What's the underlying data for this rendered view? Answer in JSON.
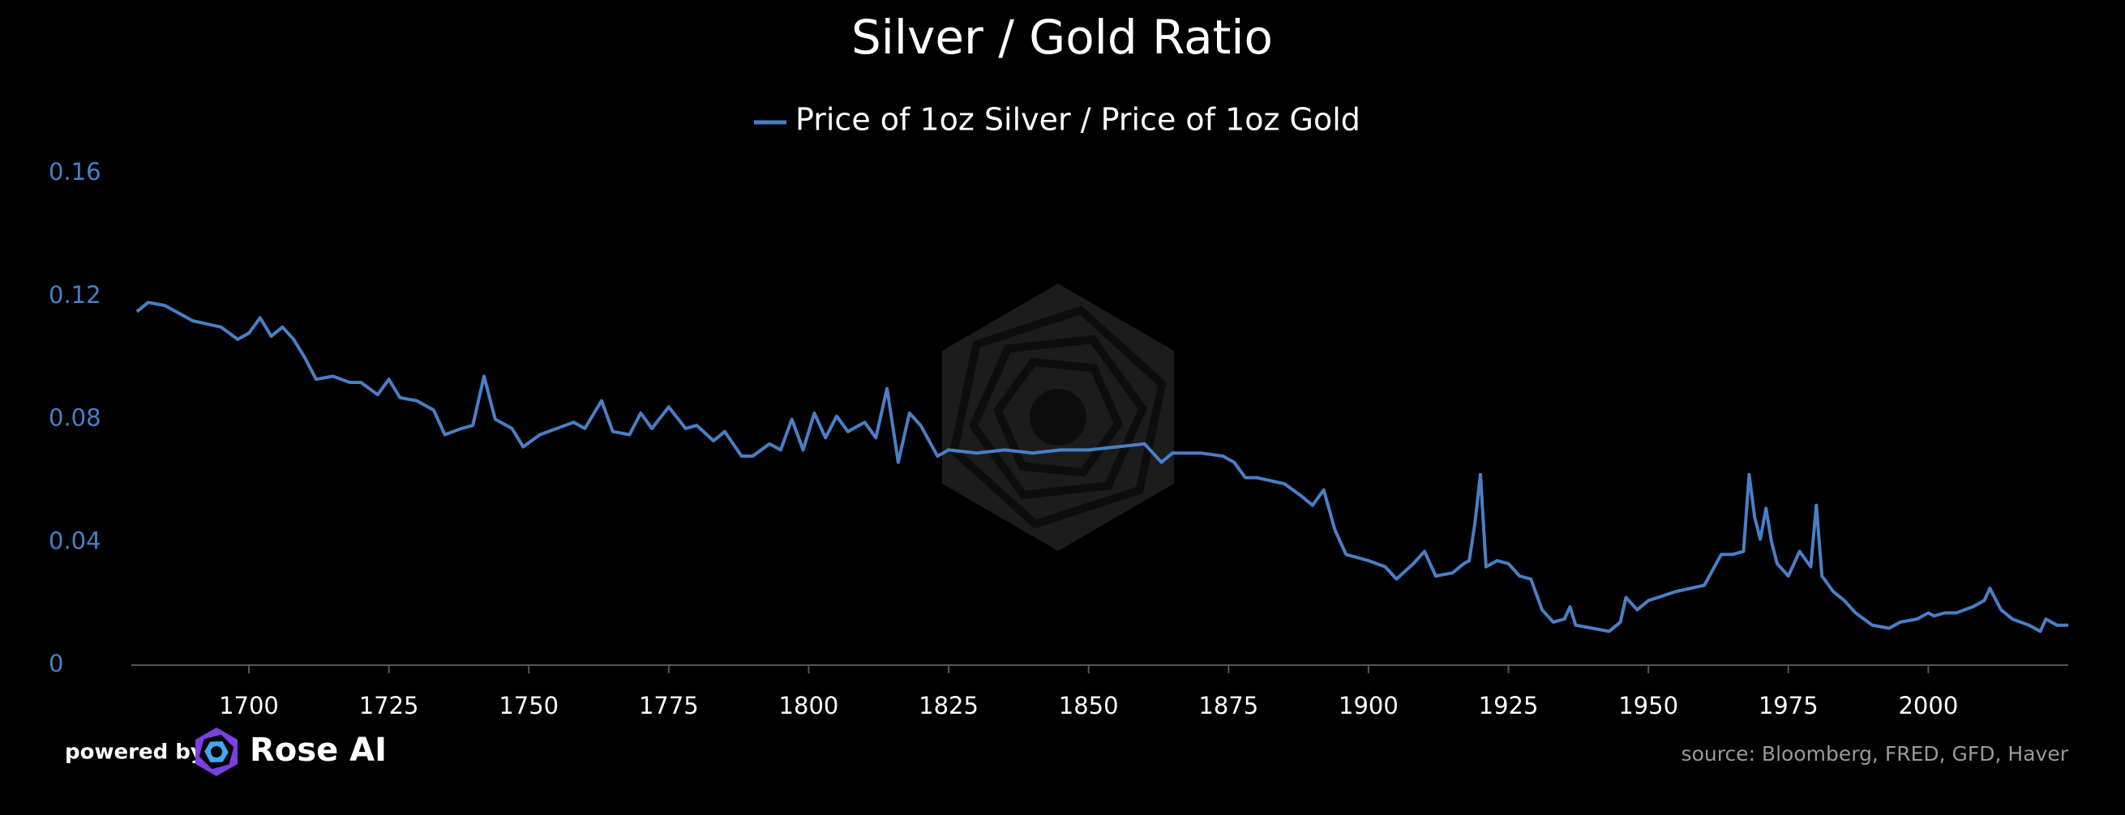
{
  "chart_data": {
    "type": "line",
    "title": "Silver / Gold Ratio",
    "x": [
      1680,
      1682,
      1685,
      1688,
      1690,
      1695,
      1698,
      1700,
      1702,
      1704,
      1706,
      1708,
      1710,
      1712,
      1715,
      1718,
      1720,
      1723,
      1725,
      1727,
      1730,
      1733,
      1735,
      1738,
      1740,
      1742,
      1744,
      1747,
      1749,
      1752,
      1755,
      1758,
      1760,
      1763,
      1765,
      1768,
      1770,
      1772,
      1775,
      1778,
      1780,
      1783,
      1785,
      1788,
      1790,
      1793,
      1795,
      1797,
      1799,
      1801,
      1803,
      1805,
      1807,
      1810,
      1812,
      1814,
      1816,
      1818,
      1820,
      1823,
      1825,
      1830,
      1835,
      1840,
      1845,
      1850,
      1855,
      1860,
      1863,
      1865,
      1870,
      1874,
      1876,
      1878,
      1880,
      1885,
      1888,
      1890,
      1892,
      1894,
      1896,
      1900,
      1903,
      1905,
      1908,
      1910,
      1912,
      1915,
      1917,
      1918,
      1919,
      1920,
      1921,
      1923,
      1925,
      1927,
      1929,
      1931,
      1933,
      1935,
      1936,
      1937,
      1940,
      1943,
      1945,
      1946,
      1948,
      1950,
      1955,
      1960,
      1963,
      1965,
      1967,
      1968,
      1969,
      1970,
      1971,
      1972,
      1973,
      1975,
      1977,
      1979,
      1980,
      1981,
      1983,
      1985,
      1987,
      1990,
      1993,
      1995,
      1998,
      2000,
      2001,
      2003,
      2005,
      2008,
      2010,
      2011,
      2013,
      2015,
      2018,
      2020,
      2021,
      2023,
      2025
    ],
    "series": [
      {
        "name": "Price of 1oz Silver / Price of 1oz Gold",
        "color": "#4a7fc6",
        "values": [
          0.115,
          0.118,
          0.117,
          0.114,
          0.112,
          0.11,
          0.106,
          0.108,
          0.113,
          0.107,
          0.11,
          0.106,
          0.1,
          0.093,
          0.094,
          0.092,
          0.092,
          0.088,
          0.093,
          0.087,
          0.086,
          0.083,
          0.075,
          0.077,
          0.078,
          0.094,
          0.08,
          0.077,
          0.071,
          0.075,
          0.077,
          0.079,
          0.077,
          0.086,
          0.076,
          0.075,
          0.082,
          0.077,
          0.084,
          0.077,
          0.078,
          0.073,
          0.076,
          0.068,
          0.068,
          0.072,
          0.07,
          0.08,
          0.07,
          0.082,
          0.074,
          0.081,
          0.076,
          0.079,
          0.074,
          0.09,
          0.066,
          0.082,
          0.078,
          0.068,
          0.07,
          0.069,
          0.07,
          0.069,
          0.07,
          0.07,
          0.071,
          0.072,
          0.066,
          0.069,
          0.069,
          0.068,
          0.066,
          0.061,
          0.061,
          0.059,
          0.055,
          0.052,
          0.057,
          0.044,
          0.036,
          0.034,
          0.032,
          0.028,
          0.033,
          0.037,
          0.029,
          0.03,
          0.033,
          0.034,
          0.046,
          0.062,
          0.032,
          0.034,
          0.033,
          0.029,
          0.028,
          0.018,
          0.014,
          0.015,
          0.019,
          0.013,
          0.012,
          0.011,
          0.014,
          0.022,
          0.018,
          0.021,
          0.024,
          0.026,
          0.036,
          0.036,
          0.037,
          0.062,
          0.048,
          0.041,
          0.051,
          0.04,
          0.033,
          0.029,
          0.037,
          0.032,
          0.052,
          0.029,
          0.024,
          0.021,
          0.017,
          0.013,
          0.012,
          0.014,
          0.015,
          0.017,
          0.016,
          0.017,
          0.017,
          0.019,
          0.021,
          0.025,
          0.018,
          0.015,
          0.013,
          0.011,
          0.015,
          0.013,
          0.013
        ]
      }
    ],
    "xlim": [
      1679,
      2025
    ],
    "xticks": [
      1700,
      1725,
      1750,
      1775,
      1800,
      1825,
      1850,
      1875,
      1900,
      1925,
      1950,
      1975,
      2000
    ],
    "ylim": [
      0,
      0.16
    ],
    "yticks": [
      0,
      0.04,
      0.08,
      0.12,
      0.16
    ],
    "grid": false
  },
  "footer": {
    "powered_by": "powered by",
    "brand": "Rose AI",
    "source": "source: Bloomberg, FRED, GFD, Haver"
  }
}
